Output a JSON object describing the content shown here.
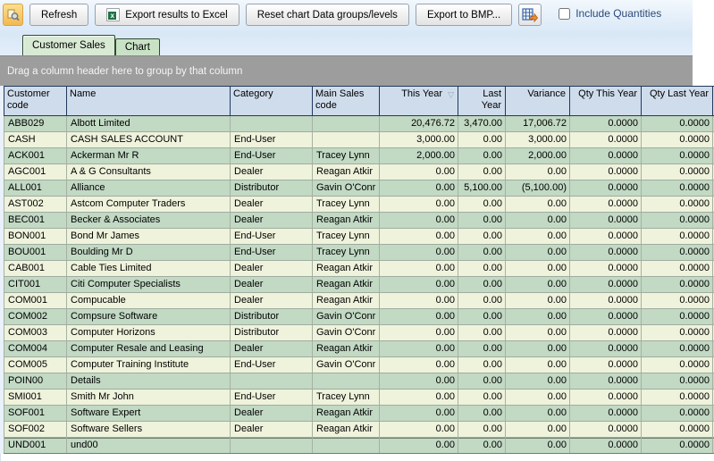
{
  "toolbar": {
    "customize_tooltip": "customize",
    "refresh_label": "Refresh",
    "export_excel_label": "Export results to Excel",
    "reset_chart_label": "Reset chart Data groups/levels",
    "export_bmp_label": "Export to BMP...",
    "include_quantities_label": "Include Quantities",
    "include_quantities_checked": false
  },
  "tabs": [
    {
      "label": "Customer Sales",
      "active": true
    },
    {
      "label": "Chart",
      "active": false
    }
  ],
  "group_bar": {
    "text": "Drag a column header here to group by that column"
  },
  "grid": {
    "sort": {
      "key": "this_year",
      "direction": "descending"
    },
    "columns": [
      {
        "key": "code",
        "label": "Customer code",
        "align": "left",
        "width": 71
      },
      {
        "key": "name",
        "label": "Name",
        "align": "left",
        "width": 183
      },
      {
        "key": "category",
        "label": "Category",
        "align": "left",
        "width": 92
      },
      {
        "key": "sales",
        "label": "Main Sales code",
        "align": "left",
        "width": 75
      },
      {
        "key": "this_year",
        "label": "This Year",
        "align": "right",
        "width": 88
      },
      {
        "key": "last_year",
        "label": "Last Year",
        "align": "right",
        "width": 53
      },
      {
        "key": "variance",
        "label": "Variance",
        "align": "right",
        "width": 72
      },
      {
        "key": "qty_ty",
        "label": "Qty This Year",
        "align": "right",
        "width": 80
      },
      {
        "key": "qty_ly",
        "label": "Qty Last Year",
        "align": "right",
        "width": 80
      }
    ],
    "rows": [
      {
        "code": "ABB029",
        "name": "Albott Limited",
        "category": "",
        "sales": "",
        "this_year": "20,476.72",
        "last_year": "3,470.00",
        "variance": "17,006.72",
        "qty_ty": "0.0000",
        "qty_ly": "0.0000"
      },
      {
        "code": "CASH",
        "name": "CASH SALES ACCOUNT",
        "category": "End-User",
        "sales": "",
        "this_year": "3,000.00",
        "last_year": "0.00",
        "variance": "3,000.00",
        "qty_ty": "0.0000",
        "qty_ly": "0.0000"
      },
      {
        "code": "ACK001",
        "name": "Ackerman Mr R",
        "category": "End-User",
        "sales": "Tracey Lynn",
        "this_year": "2,000.00",
        "last_year": "0.00",
        "variance": "2,000.00",
        "qty_ty": "0.0000",
        "qty_ly": "0.0000"
      },
      {
        "code": "AGC001",
        "name": "A & G Consultants",
        "category": "Dealer",
        "sales": "Reagan Atkir",
        "this_year": "0.00",
        "last_year": "0.00",
        "variance": "0.00",
        "qty_ty": "0.0000",
        "qty_ly": "0.0000"
      },
      {
        "code": "ALL001",
        "name": "Alliance",
        "category": "Distributor",
        "sales": "Gavin O'Conr",
        "this_year": "0.00",
        "last_year": "5,100.00",
        "variance": "(5,100.00)",
        "qty_ty": "0.0000",
        "qty_ly": "0.0000"
      },
      {
        "code": "AST002",
        "name": "Astcom Computer Traders",
        "category": "Dealer",
        "sales": "Tracey Lynn",
        "this_year": "0.00",
        "last_year": "0.00",
        "variance": "0.00",
        "qty_ty": "0.0000",
        "qty_ly": "0.0000"
      },
      {
        "code": "BEC001",
        "name": "Becker & Associates",
        "category": "Dealer",
        "sales": "Reagan Atkir",
        "this_year": "0.00",
        "last_year": "0.00",
        "variance": "0.00",
        "qty_ty": "0.0000",
        "qty_ly": "0.0000"
      },
      {
        "code": "BON001",
        "name": "Bond Mr James",
        "category": "End-User",
        "sales": "Tracey Lynn",
        "this_year": "0.00",
        "last_year": "0.00",
        "variance": "0.00",
        "qty_ty": "0.0000",
        "qty_ly": "0.0000"
      },
      {
        "code": "BOU001",
        "name": "Boulding Mr D",
        "category": "End-User",
        "sales": "Tracey Lynn",
        "this_year": "0.00",
        "last_year": "0.00",
        "variance": "0.00",
        "qty_ty": "0.0000",
        "qty_ly": "0.0000"
      },
      {
        "code": "CAB001",
        "name": "Cable Ties Limited",
        "category": "Dealer",
        "sales": "Reagan Atkir",
        "this_year": "0.00",
        "last_year": "0.00",
        "variance": "0.00",
        "qty_ty": "0.0000",
        "qty_ly": "0.0000"
      },
      {
        "code": "CIT001",
        "name": "Citi Computer Specialists",
        "category": "Dealer",
        "sales": "Reagan Atkir",
        "this_year": "0.00",
        "last_year": "0.00",
        "variance": "0.00",
        "qty_ty": "0.0000",
        "qty_ly": "0.0000"
      },
      {
        "code": "COM001",
        "name": "Compucable",
        "category": "Dealer",
        "sales": "Reagan Atkir",
        "this_year": "0.00",
        "last_year": "0.00",
        "variance": "0.00",
        "qty_ty": "0.0000",
        "qty_ly": "0.0000"
      },
      {
        "code": "COM002",
        "name": "Compsure Software",
        "category": "Distributor",
        "sales": "Gavin O'Conr",
        "this_year": "0.00",
        "last_year": "0.00",
        "variance": "0.00",
        "qty_ty": "0.0000",
        "qty_ly": "0.0000"
      },
      {
        "code": "COM003",
        "name": "Computer Horizons",
        "category": "Distributor",
        "sales": "Gavin O'Conr",
        "this_year": "0.00",
        "last_year": "0.00",
        "variance": "0.00",
        "qty_ty": "0.0000",
        "qty_ly": "0.0000"
      },
      {
        "code": "COM004",
        "name": "Computer Resale and Leasing",
        "category": "Dealer",
        "sales": "Reagan Atkir",
        "this_year": "0.00",
        "last_year": "0.00",
        "variance": "0.00",
        "qty_ty": "0.0000",
        "qty_ly": "0.0000"
      },
      {
        "code": "COM005",
        "name": "Computer Training Institute",
        "category": "End-User",
        "sales": "Gavin O'Conr",
        "this_year": "0.00",
        "last_year": "0.00",
        "variance": "0.00",
        "qty_ty": "0.0000",
        "qty_ly": "0.0000"
      },
      {
        "code": "POIN00",
        "name": "Details",
        "category": "",
        "sales": "",
        "this_year": "0.00",
        "last_year": "0.00",
        "variance": "0.00",
        "qty_ty": "0.0000",
        "qty_ly": "0.0000"
      },
      {
        "code": "SMI001",
        "name": "Smith Mr John",
        "category": "End-User",
        "sales": "Tracey Lynn",
        "this_year": "0.00",
        "last_year": "0.00",
        "variance": "0.00",
        "qty_ty": "0.0000",
        "qty_ly": "0.0000"
      },
      {
        "code": "SOF001",
        "name": "Software Expert",
        "category": "Dealer",
        "sales": "Reagan Atkir",
        "this_year": "0.00",
        "last_year": "0.00",
        "variance": "0.00",
        "qty_ty": "0.0000",
        "qty_ly": "0.0000"
      },
      {
        "code": "SOF002",
        "name": "Software Sellers",
        "category": "Dealer",
        "sales": "Reagan Atkir",
        "this_year": "0.00",
        "last_year": "0.00",
        "variance": "0.00",
        "qty_ty": "0.0000",
        "qty_ly": "0.0000"
      },
      {
        "code": "UND001",
        "name": "und00",
        "category": "",
        "sales": "",
        "this_year": "0.00",
        "last_year": "0.00",
        "variance": "0.00",
        "qty_ty": "0.0000",
        "qty_ly": "0.0000"
      }
    ]
  },
  "colors": {
    "header-bg": "#cfdcec",
    "row-dark": "#c2d9c4",
    "row-light": "#eff3dc",
    "group-bar": "#9d9d9d",
    "tab-active": "#d8e9d4",
    "tab-inactive": "#c9e2c6",
    "label-blue": "#2b4a7a"
  }
}
